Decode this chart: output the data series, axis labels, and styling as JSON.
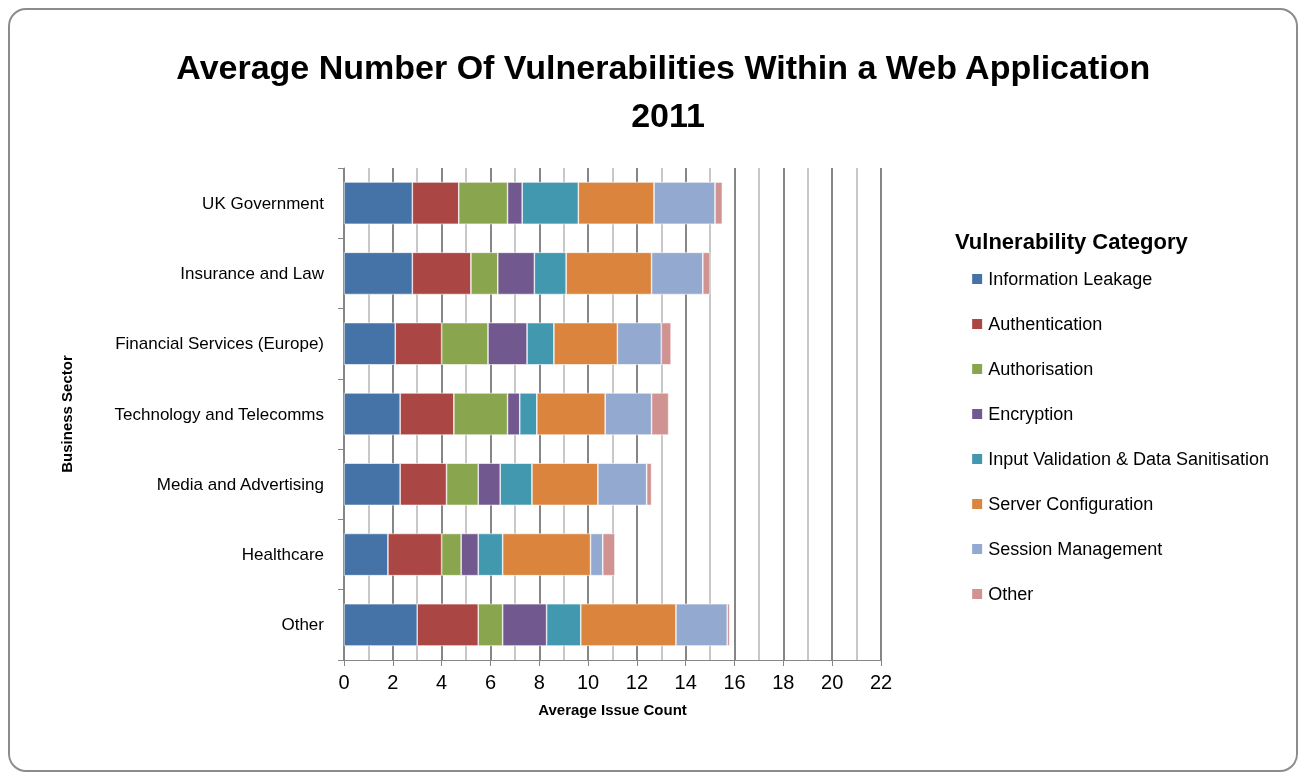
{
  "chart_data": {
    "type": "bar",
    "orientation": "horizontal",
    "stacked": true,
    "title": "Average Number Of Vulnerabilities Within a Web Application 2011",
    "xlabel": "Average Issue Count",
    "ylabel": "Business Sector",
    "legend_title": "Vulnerability Category",
    "legend": "right",
    "grid": "x",
    "categories": [
      "UK Government",
      "Insurance and Law",
      "Financial Services (Europe)",
      "Technology and Telecomms",
      "Media and Advertising",
      "Healthcare",
      "Other"
    ],
    "xlim": [
      0,
      22
    ],
    "xticks": [
      0,
      2,
      4,
      6,
      8,
      10,
      12,
      14,
      16,
      18,
      20,
      22
    ],
    "series": [
      {
        "name": "Information Leakage",
        "color": "#4572a7",
        "values": [
          2.8,
          2.8,
          2.1,
          2.3,
          2.3,
          1.8,
          3.0
        ]
      },
      {
        "name": "Authentication",
        "color": "#aa4643",
        "values": [
          1.9,
          2.4,
          1.9,
          2.2,
          1.9,
          2.2,
          2.5
        ]
      },
      {
        "name": "Authorisation",
        "color": "#89a54e",
        "values": [
          2.0,
          1.1,
          1.9,
          2.2,
          1.3,
          0.8,
          1.0
        ]
      },
      {
        "name": "Encryption",
        "color": "#71588f",
        "values": [
          0.6,
          1.5,
          1.6,
          0.5,
          0.9,
          0.7,
          1.8
        ]
      },
      {
        "name": "Input Validation & Data Sanitisation",
        "color": "#4198af",
        "values": [
          2.3,
          1.3,
          1.1,
          0.7,
          1.3,
          1.0,
          1.4
        ]
      },
      {
        "name": "Server Configuration",
        "color": "#db843d",
        "values": [
          3.1,
          3.5,
          2.6,
          2.8,
          2.7,
          3.6,
          3.9
        ]
      },
      {
        "name": "Session Management",
        "color": "#93a9cf",
        "values": [
          2.5,
          2.1,
          1.8,
          1.9,
          2.0,
          0.5,
          2.1
        ]
      },
      {
        "name": "Other",
        "color": "#d19392",
        "values": [
          0.3,
          0.3,
          0.4,
          0.7,
          0.2,
          0.5,
          0.1
        ]
      }
    ]
  }
}
